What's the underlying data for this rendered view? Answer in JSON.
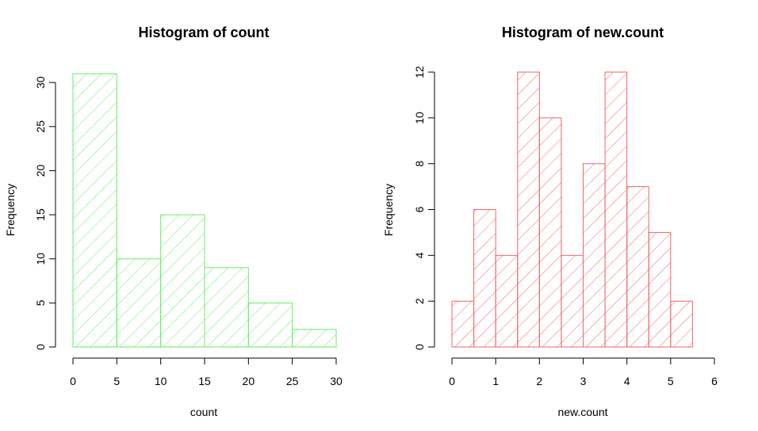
{
  "chart_data": [
    {
      "type": "bar",
      "title": "Histogram of count",
      "xlabel": "count",
      "ylabel": "Frequency",
      "bins": [
        [
          0,
          5
        ],
        [
          5,
          10
        ],
        [
          10,
          15
        ],
        [
          15,
          20
        ],
        [
          20,
          25
        ],
        [
          25,
          30
        ]
      ],
      "values": [
        31,
        10,
        15,
        9,
        5,
        2
      ],
      "xlim": [
        0,
        30
      ],
      "ylim": [
        0,
        31
      ],
      "xticks": [
        "0",
        "5",
        "10",
        "15",
        "20",
        "25",
        "30"
      ],
      "yticks": [
        "0",
        "5",
        "10",
        "15",
        "20",
        "25",
        "30"
      ],
      "color": "#66ee66",
      "fill": "hatched (diagonal lines)",
      "grid": false
    },
    {
      "type": "bar",
      "title": "Histogram of new.count",
      "xlabel": "new.count",
      "ylabel": "Frequency",
      "bins": [
        [
          0,
          0.5
        ],
        [
          0.5,
          1
        ],
        [
          1,
          1.5
        ],
        [
          1.5,
          2
        ],
        [
          2,
          2.5
        ],
        [
          2.5,
          3
        ],
        [
          3,
          3.5
        ],
        [
          3.5,
          4
        ],
        [
          4,
          4.5
        ],
        [
          4.5,
          5
        ],
        [
          5,
          5.5
        ]
      ],
      "values": [
        2,
        6,
        4,
        12,
        10,
        4,
        8,
        12,
        7,
        5,
        2
      ],
      "xlim": [
        0,
        6
      ],
      "ylim": [
        0,
        12
      ],
      "xticks": [
        "0",
        "1",
        "2",
        "3",
        "4",
        "5",
        "6"
      ],
      "yticks": [
        "0",
        "2",
        "4",
        "6",
        "8",
        "10",
        "12"
      ],
      "color": "#ee6666",
      "fill": "hatched (diagonal lines)",
      "grid": false
    }
  ]
}
